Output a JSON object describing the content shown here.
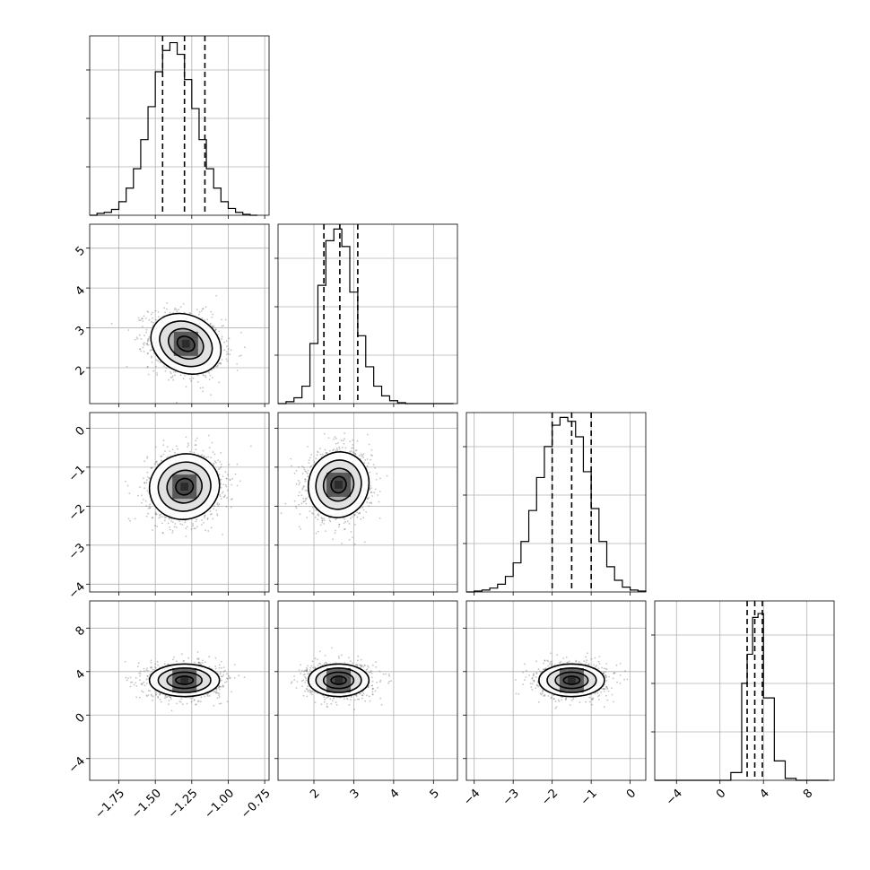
{
  "chart_data": {
    "type": "corner",
    "params": [
      {
        "range": [
          -1.95,
          -0.72
        ],
        "ticks": [
          -1.75,
          -1.5,
          -1.25,
          -1.0,
          -0.75
        ],
        "tick_labels": [
          "−1.75",
          "−1.50",
          "−1.25",
          "−1.00",
          "−0.75"
        ],
        "quantiles": [
          -1.45,
          -1.3,
          -1.16
        ],
        "hist": {
          "edges": [
            -1.95,
            -1.9,
            -1.85,
            -1.8,
            -1.75,
            -1.7,
            -1.65,
            -1.6,
            -1.55,
            -1.5,
            -1.45,
            -1.4,
            -1.35,
            -1.3,
            -1.25,
            -1.2,
            -1.15,
            -1.1,
            -1.05,
            -1.0,
            -0.95,
            -0.9,
            -0.85,
            -0.8
          ],
          "counts": [
            0,
            2,
            3,
            6,
            14,
            28,
            48,
            78,
            112,
            148,
            170,
            178,
            166,
            140,
            110,
            78,
            48,
            28,
            14,
            7,
            3,
            1,
            0
          ],
          "ymax": 185
        }
      },
      {
        "range": [
          1.1,
          5.6
        ],
        "ticks": [
          2,
          3,
          4,
          5
        ],
        "tick_labels": [
          "2",
          "3",
          "4",
          "5"
        ],
        "quantiles": [
          2.25,
          2.65,
          3.1
        ],
        "hist": {
          "edges": [
            1.1,
            1.3,
            1.5,
            1.7,
            1.9,
            2.1,
            2.3,
            2.5,
            2.7,
            2.9,
            3.1,
            3.3,
            3.5,
            3.7,
            3.9,
            4.1,
            4.3,
            4.5,
            4.7,
            4.9,
            5.1,
            5.3,
            5.5
          ],
          "counts": [
            0,
            2,
            6,
            18,
            62,
            122,
            168,
            180,
            162,
            115,
            70,
            38,
            18,
            8,
            3,
            1,
            0,
            0,
            0,
            0,
            0,
            0
          ],
          "ymax": 185
        }
      },
      {
        "range": [
          -4.2,
          0.4
        ],
        "ticks": [
          -4,
          -3,
          -2,
          -1,
          0
        ],
        "tick_labels": [
          "−4",
          "−3",
          "−2",
          "−1",
          "0"
        ],
        "quantiles": [
          -2.0,
          -1.5,
          -1.0
        ],
        "hist": {
          "edges": [
            -4.2,
            -4.0,
            -3.8,
            -3.6,
            -3.4,
            -3.2,
            -3.0,
            -2.8,
            -2.6,
            -2.4,
            -2.2,
            -2.0,
            -1.8,
            -1.6,
            -1.4,
            -1.2,
            -1.0,
            -0.8,
            -0.6,
            -0.4,
            -0.2,
            0.0,
            0.2,
            0.4
          ],
          "counts": [
            0,
            1,
            2,
            4,
            8,
            16,
            30,
            52,
            84,
            118,
            150,
            172,
            180,
            176,
            160,
            124,
            86,
            52,
            26,
            12,
            5,
            2,
            1
          ],
          "ymax": 185
        }
      },
      {
        "range": [
          -6.0,
          10.5
        ],
        "ticks": [
          -4,
          0,
          4,
          8
        ],
        "tick_labels": [
          "−4",
          "0",
          "4",
          "8"
        ],
        "quantiles": [
          2.5,
          3.2,
          3.9
        ],
        "hist": {
          "edges": [
            -6.0,
            -5.0,
            -4.0,
            -3.0,
            -2.0,
            -1.0,
            0.0,
            1.0,
            2.0,
            2.5,
            3.0,
            3.5,
            4.0,
            5.0,
            6.0,
            7.0,
            8.0,
            9.0,
            10.0
          ],
          "counts": [
            0,
            0,
            0,
            0,
            0,
            0,
            0,
            8,
            100,
            130,
            168,
            172,
            85,
            20,
            2,
            0,
            0,
            0
          ],
          "ymax": 185
        }
      }
    ],
    "pairs": [
      {
        "row": 1,
        "col": 0,
        "center": [
          -1.29,
          2.6
        ],
        "sd": [
          0.12,
          0.38
        ],
        "rho": -0.2
      },
      {
        "row": 2,
        "col": 0,
        "center": [
          -1.3,
          -1.5
        ],
        "sd": [
          0.12,
          0.42
        ],
        "rho": 0.05
      },
      {
        "row": 2,
        "col": 1,
        "center": [
          2.62,
          -1.45
        ],
        "sd": [
          0.38,
          0.42
        ],
        "rho": 0.05
      },
      {
        "row": 3,
        "col": 0,
        "center": [
          -1.3,
          3.2
        ],
        "sd": [
          0.12,
          0.75
        ],
        "rho": 0.0
      },
      {
        "row": 3,
        "col": 1,
        "center": [
          2.62,
          3.2
        ],
        "sd": [
          0.38,
          0.75
        ],
        "rho": 0.0
      },
      {
        "row": 3,
        "col": 2,
        "center": [
          -1.5,
          3.2
        ],
        "sd": [
          0.42,
          0.75
        ],
        "rho": 0.0
      }
    ],
    "contour_levels_sigma": [
      0.5,
      1.0,
      1.5,
      2.0
    ],
    "grid": true,
    "dashed_quantiles": true
  }
}
